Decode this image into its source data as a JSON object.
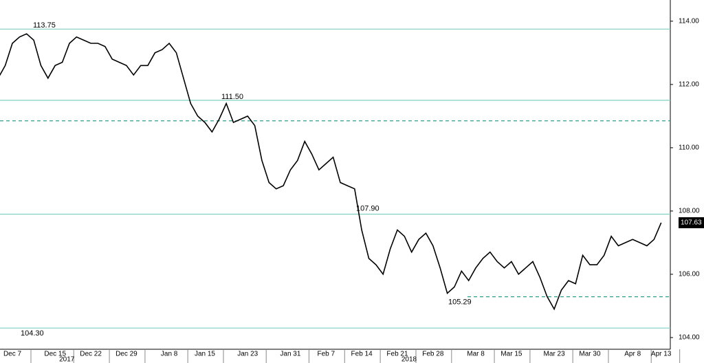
{
  "chart_data": {
    "type": "line",
    "categories": [
      null,
      null,
      "Dec 7",
      null,
      null,
      null,
      null,
      null,
      "Dec 15",
      null,
      null,
      null,
      null,
      "Dec 22",
      null,
      null,
      null,
      null,
      "Dec 29",
      null,
      null,
      null,
      null,
      null,
      "Jan 8",
      null,
      null,
      null,
      null,
      "Jan 15",
      null,
      null,
      null,
      null,
      null,
      "Jan 23",
      null,
      null,
      null,
      null,
      null,
      "Jan 31",
      null,
      null,
      null,
      null,
      "Feb 7",
      null,
      null,
      null,
      null,
      "Feb 14",
      null,
      null,
      null,
      null,
      "Feb 21",
      null,
      null,
      null,
      null,
      "Feb 28",
      null,
      null,
      null,
      null,
      null,
      "Mar 8",
      null,
      null,
      null,
      null,
      "Mar 15",
      null,
      null,
      null,
      null,
      null,
      "Mar 23",
      null,
      null,
      null,
      null,
      "Mar 30",
      null,
      null,
      null,
      null,
      null,
      "Apr 8",
      null,
      null,
      null,
      "Apr 13"
    ],
    "year_labels": [
      "2017",
      "2018"
    ],
    "series": [
      {
        "color": "#000000",
        "values": [
          112.2,
          112.6,
          113.3,
          113.5,
          113.6,
          113.4,
          112.6,
          112.2,
          112.6,
          112.7,
          113.3,
          113.5,
          113.4,
          113.3,
          113.3,
          113.2,
          112.8,
          112.7,
          112.6,
          112.3,
          112.6,
          112.6,
          113.0,
          113.1,
          113.3,
          113.0,
          112.2,
          111.4,
          111.0,
          110.8,
          110.5,
          110.9,
          111.4,
          110.8,
          110.9,
          111.0,
          110.7,
          109.6,
          108.9,
          108.7,
          108.8,
          109.3,
          109.6,
          110.2,
          109.8,
          109.3,
          109.5,
          109.7,
          108.9,
          108.8,
          108.7,
          107.4,
          106.5,
          106.3,
          106.0,
          106.8,
          107.4,
          107.2,
          106.7,
          107.1,
          107.3,
          106.9,
          106.2,
          105.4,
          105.6,
          106.1,
          105.8,
          106.2,
          106.5,
          106.7,
          106.4,
          106.2,
          106.4,
          106.0,
          106.2,
          106.4,
          105.9,
          105.3,
          104.9,
          105.5,
          105.8,
          105.7,
          106.6,
          106.3,
          106.3,
          106.6,
          107.2,
          106.9,
          107.0,
          107.1,
          107.0,
          106.9,
          107.1,
          107.63
        ]
      }
    ],
    "ylim": [
      103.63,
      114.67
    ],
    "yticks": [
      {
        "value": 104,
        "label": "104.00"
      },
      {
        "value": 106,
        "label": "106.00"
      },
      {
        "value": 108,
        "label": "108.00"
      },
      {
        "value": 110,
        "label": "110.00"
      },
      {
        "value": 112,
        "label": "112.00"
      },
      {
        "value": 114,
        "label": "114.00"
      }
    ],
    "reference_lines": [
      {
        "value": 113.75,
        "label": "113.75",
        "style": "solid",
        "color": "#7fcfc0"
      },
      {
        "value": 111.5,
        "label": "111.50",
        "style": "solid",
        "color": "#7fcfc0"
      },
      {
        "value": 110.85,
        "style": "dashed",
        "color": "#2e9c8a"
      },
      {
        "value": 107.9,
        "label": "107.90",
        "style": "solid",
        "color": "#7fcfc0"
      },
      {
        "value": 105.29,
        "label": "105.29",
        "style": "dashed",
        "color": "#2e9c8a"
      },
      {
        "value": 104.3,
        "label": "104.30",
        "style": "solid",
        "color": "#7fcfc0"
      }
    ]
  }
}
